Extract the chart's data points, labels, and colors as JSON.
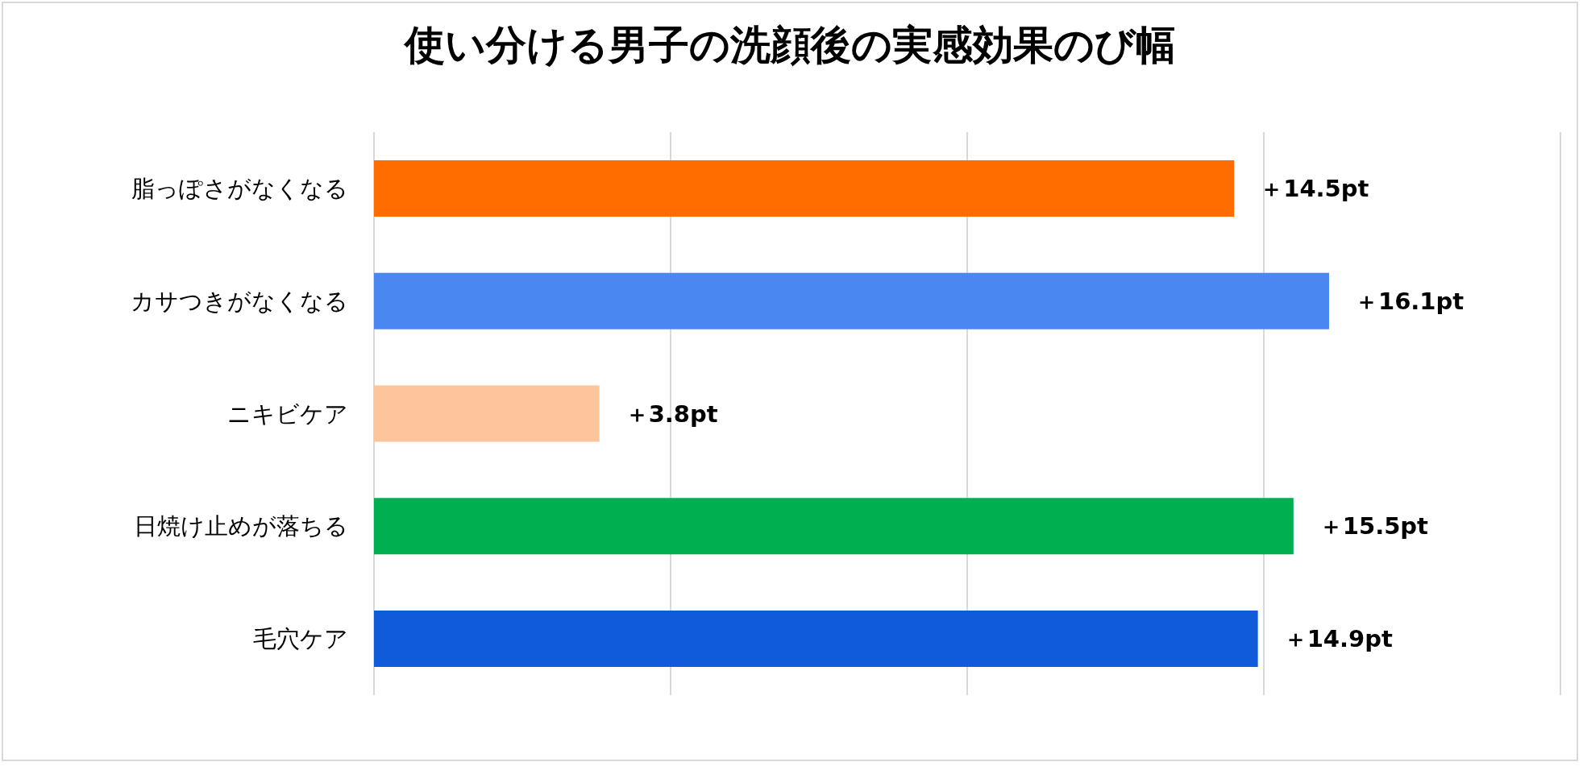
{
  "chart_data": {
    "type": "bar",
    "orientation": "horizontal",
    "title": "使い分ける男子の洗顔後の実感効果のび幅",
    "categories": [
      "脂っぽさがなくなる",
      "カサつきがなくなる",
      "ニキビケア",
      "日焼け止めが落ちる",
      "毛穴ケア"
    ],
    "values": [
      14.5,
      16.1,
      3.8,
      15.5,
      14.9
    ],
    "colors": [
      "#ff6d00",
      "#4a87f0",
      "#fdc59b",
      "#00b050",
      "#0f5bd9"
    ],
    "value_labels": [
      "＋14.5pt",
      "＋16.1pt",
      "＋3.8pt",
      "＋15.5pt",
      "＋14.9pt"
    ],
    "xlim": [
      0,
      20
    ],
    "xticks": [
      {
        "value": 0,
        "label": null
      },
      {
        "value": 5,
        "label": null
      },
      {
        "value": 10,
        "label": null
      },
      {
        "value": 15,
        "label": null
      },
      {
        "value": 20,
        "label": null
      }
    ],
    "tick_labels": "y",
    "grid": "x"
  }
}
